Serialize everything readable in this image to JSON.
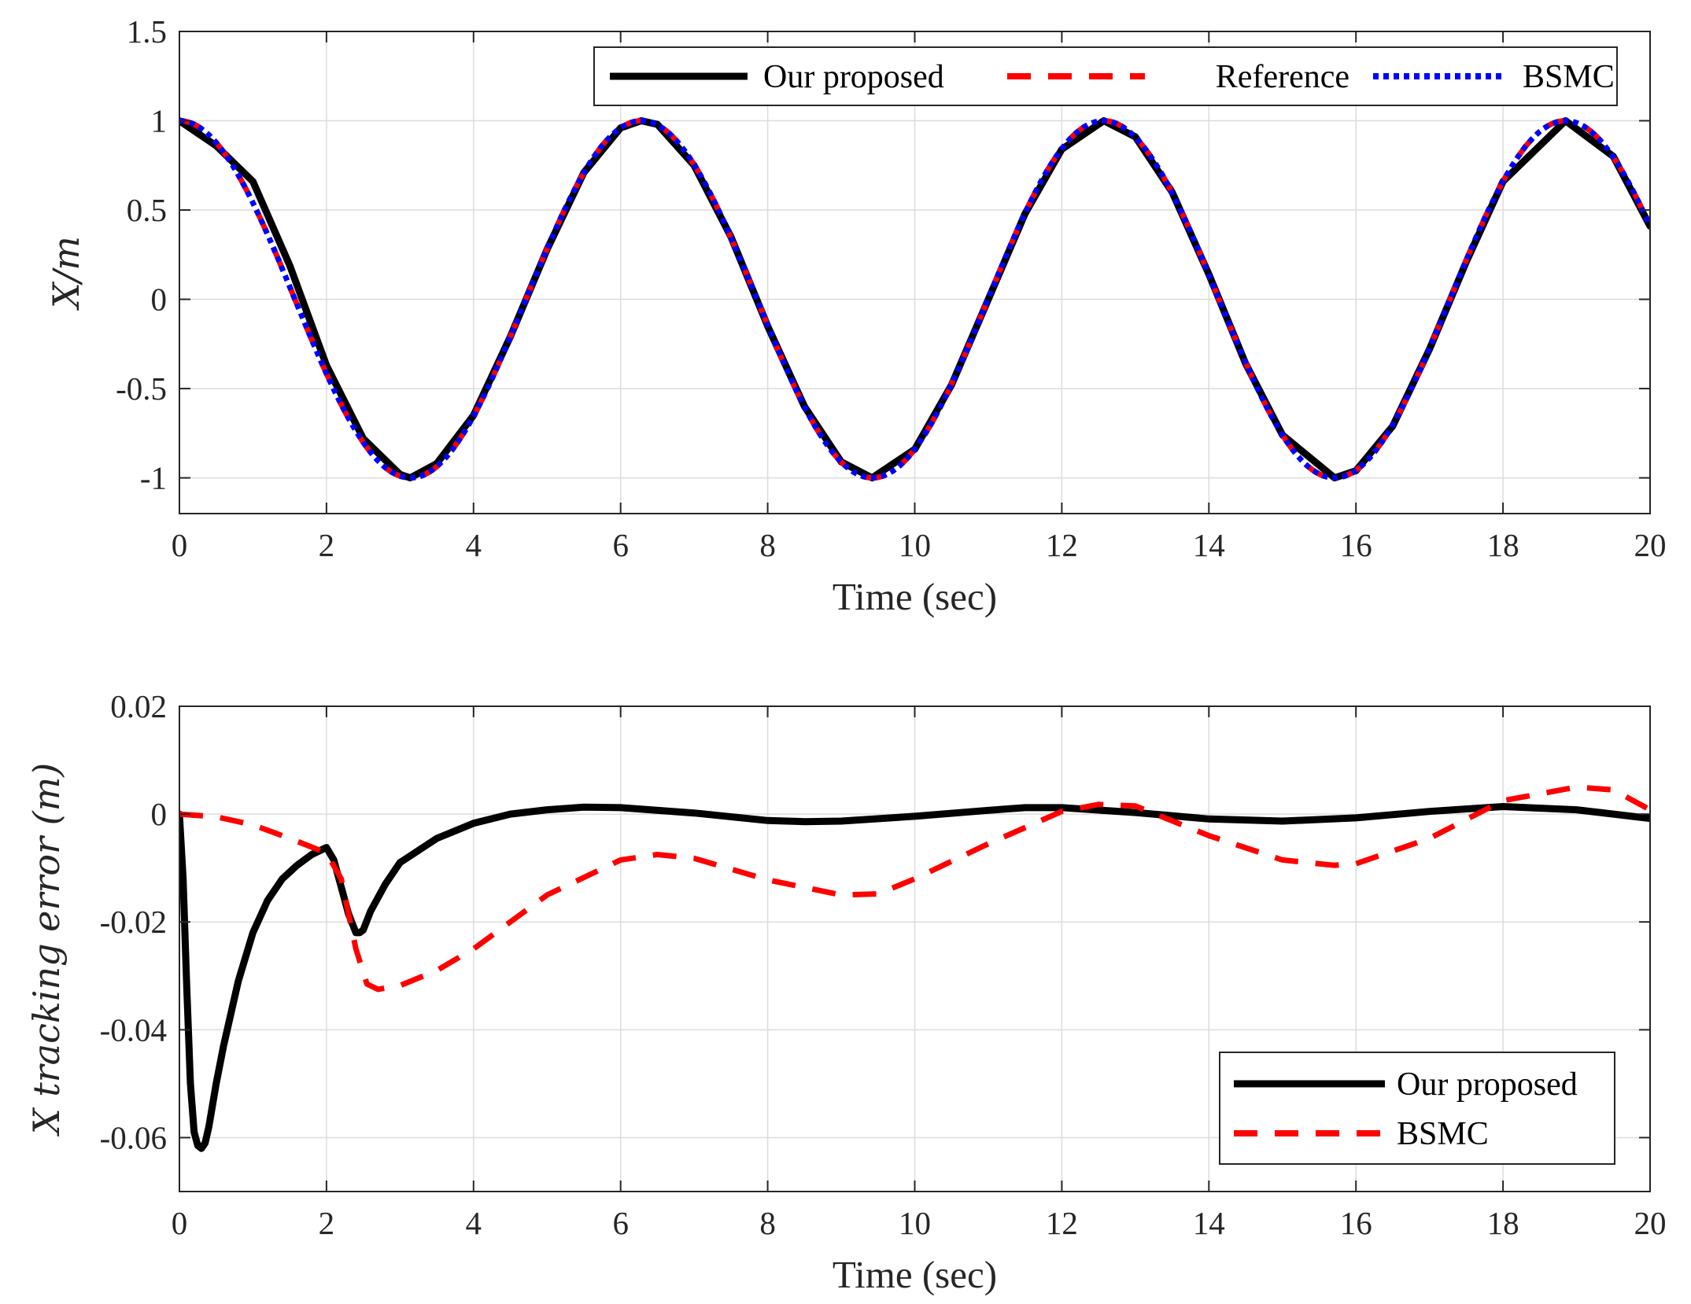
{
  "chart_data": [
    {
      "type": "line",
      "title": "",
      "xlabel": "Time (sec)",
      "ylabel": "X/m",
      "xlim": [
        0,
        20
      ],
      "ylim": [
        -1.2,
        1.5
      ],
      "xticks": [
        0,
        2,
        4,
        6,
        8,
        10,
        12,
        14,
        16,
        18,
        20
      ],
      "yticks": [
        -1,
        -0.5,
        0,
        0.5,
        1,
        1.5
      ],
      "ytick_labels": [
        "-1",
        "-0.5",
        "0",
        "0.5",
        "1",
        "1.5"
      ],
      "grid": true,
      "legend_position": "top-right",
      "legend_orientation": "horizontal",
      "series": [
        {
          "name": "Our proposed",
          "color": "#000000",
          "style": "solid",
          "x": [
            0,
            0.5,
            1,
            1.5,
            2,
            2.5,
            3,
            3.14,
            3.5,
            4,
            4.5,
            5,
            5.5,
            6,
            6.28,
            6.5,
            7,
            7.5,
            8,
            8.5,
            9,
            9.42,
            10,
            10.5,
            11,
            11.5,
            12,
            12.57,
            13,
            13.5,
            14,
            14.5,
            15,
            15.71,
            16,
            16.5,
            17,
            17.5,
            18,
            18.85,
            19.5,
            20
          ],
          "y": [
            1.0,
            0.86,
            0.66,
            0.19,
            -0.37,
            -0.78,
            -0.98,
            -1.0,
            -0.92,
            -0.65,
            -0.21,
            0.28,
            0.71,
            0.96,
            1.0,
            0.98,
            0.75,
            0.35,
            -0.15,
            -0.6,
            -0.91,
            -1.0,
            -0.84,
            -0.48,
            0.0,
            0.48,
            0.84,
            1.0,
            0.91,
            0.6,
            0.14,
            -0.36,
            -0.76,
            -1.0,
            -0.96,
            -0.71,
            -0.28,
            0.21,
            0.66,
            1.0,
            0.8,
            0.41
          ]
        },
        {
          "name": "Reference",
          "color": "#ff0000",
          "style": "dashed",
          "formula": "cos(t)"
        },
        {
          "name": "BSMC",
          "color": "#0000ff",
          "style": "dotted",
          "formula": "cos(t)"
        }
      ]
    },
    {
      "type": "line",
      "title": "",
      "xlabel": "Time (sec)",
      "ylabel": "X tracking error (m)",
      "xlim": [
        0,
        20
      ],
      "ylim": [
        -0.07,
        0.02
      ],
      "xticks": [
        0,
        2,
        4,
        6,
        8,
        10,
        12,
        14,
        16,
        18,
        20
      ],
      "yticks": [
        -0.06,
        -0.04,
        -0.02,
        0,
        0.02
      ],
      "ytick_labels": [
        "-0.06",
        "-0.04",
        "-0.02",
        "0",
        "0.02"
      ],
      "grid": true,
      "legend_position": "bottom-right",
      "legend_orientation": "vertical",
      "series": [
        {
          "name": "Our proposed",
          "color": "#000000",
          "style": "solid",
          "x": [
            0,
            0.05,
            0.1,
            0.15,
            0.2,
            0.25,
            0.3,
            0.35,
            0.4,
            0.5,
            0.6,
            0.8,
            1.0,
            1.2,
            1.4,
            1.6,
            1.8,
            2.0,
            2.1,
            2.2,
            2.3,
            2.4,
            2.45,
            2.5,
            2.6,
            2.8,
            3.0,
            3.5,
            4.0,
            4.5,
            5.0,
            5.5,
            6.0,
            7.0,
            8.0,
            8.5,
            9.0,
            10.0,
            11.0,
            11.5,
            12.0,
            13.0,
            14.0,
            15.0,
            16.0,
            17.0,
            18.0,
            19.0,
            20.0
          ],
          "y": [
            0,
            -0.012,
            -0.032,
            -0.05,
            -0.059,
            -0.0615,
            -0.062,
            -0.061,
            -0.058,
            -0.05,
            -0.043,
            -0.031,
            -0.022,
            -0.016,
            -0.012,
            -0.0095,
            -0.0075,
            -0.0062,
            -0.0085,
            -0.0135,
            -0.0185,
            -0.022,
            -0.022,
            -0.0215,
            -0.018,
            -0.013,
            -0.009,
            -0.0045,
            -0.0017,
            0.0,
            0.0008,
            0.0013,
            0.0012,
            0.0002,
            -0.0012,
            -0.0014,
            -0.0013,
            -0.0004,
            0.0007,
            0.0012,
            0.0012,
            0.0003,
            -0.0009,
            -0.0013,
            -0.0007,
            0.0005,
            0.0014,
            0.0008,
            -0.0008
          ]
        },
        {
          "name": "BSMC",
          "color": "#ff0000",
          "style": "dashed",
          "x": [
            0,
            0.5,
            1.0,
            1.5,
            2.0,
            2.2,
            2.4,
            2.55,
            2.7,
            3.0,
            3.5,
            4.0,
            5.0,
            6.0,
            6.5,
            7.0,
            8.0,
            9.0,
            9.5,
            10.0,
            11.0,
            12.0,
            12.5,
            13.0,
            14.0,
            15.0,
            15.7,
            16.0,
            17.0,
            18.0,
            19.0,
            19.5,
            20.0
          ],
          "y": [
            0,
            -0.0005,
            -0.002,
            -0.0045,
            -0.0072,
            -0.012,
            -0.025,
            -0.0315,
            -0.0325,
            -0.0318,
            -0.029,
            -0.025,
            -0.015,
            -0.0085,
            -0.0075,
            -0.0082,
            -0.0122,
            -0.015,
            -0.0148,
            -0.012,
            -0.0055,
            0.0005,
            0.0018,
            0.0015,
            -0.004,
            -0.0085,
            -0.0095,
            -0.0092,
            -0.0045,
            0.0025,
            0.005,
            0.0045,
            0.0008
          ]
        }
      ]
    }
  ]
}
